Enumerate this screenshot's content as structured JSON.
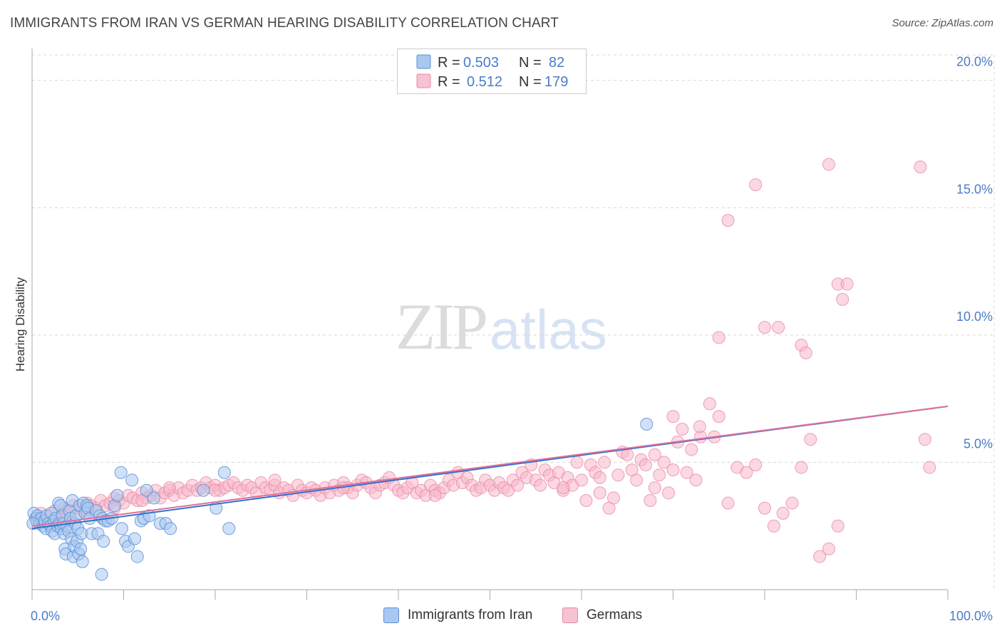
{
  "title": "IMMIGRANTS FROM IRAN VS GERMAN HEARING DISABILITY CORRELATION CHART",
  "source": "Source: ZipAtlas.com",
  "watermark": {
    "zip": "ZIP",
    "atlas": "atlas"
  },
  "colors": {
    "blue_fill": "#a9c8f0",
    "blue_stroke": "#5b8fd6",
    "blue_line": "#3470cc",
    "pink_fill": "#f7b8cb",
    "pink_stroke": "#e889a6",
    "pink_line": "#e0709a",
    "tick": "#4a7cc9",
    "grid": "#d8d8d8"
  },
  "legend_top": {
    "rows": [
      {
        "r_label": "R =",
        "r_value": "0.503",
        "n_label": "N =",
        "n_value": "82",
        "color": "blue"
      },
      {
        "r_label": "R =",
        "r_value": "0.512",
        "n_label": "N =",
        "n_value": "179",
        "color": "pink"
      }
    ]
  },
  "legend_bottom": [
    {
      "label": "Immigrants from Iran",
      "color": "blue"
    },
    {
      "label": "Germans",
      "color": "pink"
    }
  ],
  "chart_data": {
    "type": "scatter",
    "title": "IMMIGRANTS FROM IRAN VS GERMAN HEARING DISABILITY CORRELATION CHART",
    "xlabel": "",
    "ylabel": "Hearing Disability",
    "xlim": [
      0,
      100
    ],
    "ylim": [
      0,
      21
    ],
    "x_tick_labels": [
      "0.0%",
      "100.0%"
    ],
    "y_ticks": [
      5,
      10,
      15,
      20
    ],
    "y_tick_labels": [
      "5.0%",
      "10.0%",
      "15.0%",
      "20.0%"
    ],
    "grid": true,
    "legend_position": "top-center",
    "series": [
      {
        "name": "Immigrants from Iran",
        "color": "blue",
        "trend": {
          "x": [
            0,
            100
          ],
          "y": [
            2.4,
            7.2
          ]
        },
        "points": [
          [
            0.2,
            3.0
          ],
          [
            0.4,
            2.8
          ],
          [
            0.5,
            2.7
          ],
          [
            0.6,
            2.9
          ],
          [
            0.8,
            2.6
          ],
          [
            1.0,
            2.8
          ],
          [
            1.2,
            2.5
          ],
          [
            1.4,
            2.7
          ],
          [
            1.5,
            2.4
          ],
          [
            1.6,
            2.9
          ],
          [
            1.8,
            2.6
          ],
          [
            2.0,
            2.5
          ],
          [
            2.1,
            3.0
          ],
          [
            2.2,
            2.3
          ],
          [
            2.4,
            2.7
          ],
          [
            2.5,
            2.2
          ],
          [
            2.6,
            2.8
          ],
          [
            2.8,
            2.5
          ],
          [
            2.9,
            3.4
          ],
          [
            3.0,
            2.6
          ],
          [
            3.1,
            3.3
          ],
          [
            3.2,
            2.4
          ],
          [
            3.3,
            2.9
          ],
          [
            3.4,
            2.6
          ],
          [
            3.5,
            2.2
          ],
          [
            3.6,
            1.6
          ],
          [
            3.7,
            1.4
          ],
          [
            3.8,
            2.5
          ],
          [
            4.0,
            2.3
          ],
          [
            4.1,
            3.1
          ],
          [
            4.2,
            2.8
          ],
          [
            4.3,
            2.0
          ],
          [
            4.4,
            3.5
          ],
          [
            4.5,
            1.3
          ],
          [
            4.6,
            1.7
          ],
          [
            4.7,
            2.6
          ],
          [
            4.8,
            2.9
          ],
          [
            4.9,
            1.9
          ],
          [
            5.0,
            2.4
          ],
          [
            5.1,
            1.4
          ],
          [
            5.2,
            3.3
          ],
          [
            5.3,
            1.6
          ],
          [
            5.4,
            2.2
          ],
          [
            5.5,
            1.1
          ],
          [
            5.6,
            3.4
          ],
          [
            5.8,
            3.0
          ],
          [
            6.0,
            3.3
          ],
          [
            6.1,
            3.2
          ],
          [
            6.3,
            2.8
          ],
          [
            6.5,
            2.2
          ],
          [
            7.0,
            3.1
          ],
          [
            7.2,
            2.2
          ],
          [
            7.4,
            2.9
          ],
          [
            7.6,
            0.6
          ],
          [
            7.7,
            2.8
          ],
          [
            7.8,
            1.9
          ],
          [
            8.0,
            2.7
          ],
          [
            8.3,
            2.7
          ],
          [
            8.7,
            2.8
          ],
          [
            9.0,
            3.3
          ],
          [
            9.3,
            3.7
          ],
          [
            9.7,
            4.6
          ],
          [
            9.8,
            2.4
          ],
          [
            10.2,
            1.9
          ],
          [
            10.5,
            1.7
          ],
          [
            10.9,
            4.3
          ],
          [
            11.2,
            2.0
          ],
          [
            11.5,
            1.3
          ],
          [
            11.9,
            2.7
          ],
          [
            12.2,
            2.8
          ],
          [
            12.5,
            3.9
          ],
          [
            12.8,
            2.9
          ],
          [
            13.3,
            3.6
          ],
          [
            14.0,
            2.6
          ],
          [
            14.6,
            2.6
          ],
          [
            15.1,
            2.4
          ],
          [
            18.7,
            3.9
          ],
          [
            20.1,
            3.2
          ],
          [
            21.0,
            4.6
          ],
          [
            21.5,
            2.4
          ],
          [
            67.1,
            6.5
          ],
          [
            0.1,
            2.6
          ]
        ]
      },
      {
        "name": "Germans",
        "color": "pink",
        "trend": {
          "x": [
            0,
            100
          ],
          "y": [
            2.5,
            7.2
          ]
        },
        "points": [
          [
            0.5,
            2.8
          ],
          [
            1.0,
            3.0
          ],
          [
            1.5,
            2.7
          ],
          [
            2.0,
            2.9
          ],
          [
            2.5,
            3.1
          ],
          [
            3.0,
            2.8
          ],
          [
            3.5,
            3.2
          ],
          [
            4.0,
            3.0
          ],
          [
            4.5,
            3.3
          ],
          [
            5.0,
            3.2
          ],
          [
            5.5,
            3.1
          ],
          [
            6.0,
            3.4
          ],
          [
            6.5,
            3.3
          ],
          [
            7.0,
            3.2
          ],
          [
            7.5,
            3.5
          ],
          [
            8.0,
            3.3
          ],
          [
            8.5,
            3.4
          ],
          [
            9.0,
            3.6
          ],
          [
            9.5,
            3.5
          ],
          [
            10.0,
            3.4
          ],
          [
            10.5,
            3.7
          ],
          [
            11.0,
            3.6
          ],
          [
            11.5,
            3.5
          ],
          [
            12.0,
            3.8
          ],
          [
            12.5,
            3.6
          ],
          [
            13.0,
            3.7
          ],
          [
            13.5,
            3.9
          ],
          [
            14.0,
            3.6
          ],
          [
            14.5,
            3.8
          ],
          [
            15.0,
            3.9
          ],
          [
            15.5,
            3.7
          ],
          [
            16.0,
            4.0
          ],
          [
            16.5,
            3.8
          ],
          [
            17.0,
            3.9
          ],
          [
            17.5,
            4.1
          ],
          [
            18.0,
            3.9
          ],
          [
            18.5,
            4.0
          ],
          [
            19.0,
            4.2
          ],
          [
            19.5,
            4.0
          ],
          [
            20.0,
            4.1
          ],
          [
            20.5,
            3.9
          ],
          [
            21.0,
            4.0
          ],
          [
            21.5,
            4.1
          ],
          [
            22.0,
            4.2
          ],
          [
            22.5,
            4.0
          ],
          [
            23.0,
            3.9
          ],
          [
            23.5,
            4.1
          ],
          [
            24.0,
            4.0
          ],
          [
            24.5,
            3.8
          ],
          [
            25.0,
            4.2
          ],
          [
            25.5,
            4.0
          ],
          [
            26.0,
            3.9
          ],
          [
            26.5,
            4.1
          ],
          [
            27.0,
            3.8
          ],
          [
            27.5,
            4.0
          ],
          [
            28.0,
            3.9
          ],
          [
            28.5,
            3.7
          ],
          [
            29.0,
            4.1
          ],
          [
            29.5,
            3.9
          ],
          [
            30.0,
            3.8
          ],
          [
            30.5,
            4.0
          ],
          [
            31.0,
            3.9
          ],
          [
            31.5,
            3.7
          ],
          [
            32.0,
            4.0
          ],
          [
            32.5,
            3.8
          ],
          [
            33.0,
            4.1
          ],
          [
            33.5,
            3.9
          ],
          [
            34.0,
            4.2
          ],
          [
            34.5,
            4.0
          ],
          [
            35.0,
            3.8
          ],
          [
            35.5,
            4.1
          ],
          [
            36.0,
            4.3
          ],
          [
            36.5,
            4.2
          ],
          [
            37.0,
            4.0
          ],
          [
            37.5,
            3.8
          ],
          [
            38.0,
            4.1
          ],
          [
            38.5,
            4.2
          ],
          [
            39.0,
            4.4
          ],
          [
            39.5,
            4.1
          ],
          [
            40.0,
            3.9
          ],
          [
            40.5,
            3.8
          ],
          [
            41.0,
            4.0
          ],
          [
            41.5,
            4.2
          ],
          [
            42.0,
            3.8
          ],
          [
            42.5,
            3.9
          ],
          [
            43.0,
            3.7
          ],
          [
            43.5,
            4.1
          ],
          [
            44.0,
            3.9
          ],
          [
            44.5,
            3.8
          ],
          [
            45.0,
            4.0
          ],
          [
            45.5,
            4.3
          ],
          [
            46.0,
            4.1
          ],
          [
            46.5,
            4.6
          ],
          [
            47.0,
            4.2
          ],
          [
            47.5,
            4.4
          ],
          [
            48.0,
            4.1
          ],
          [
            48.5,
            3.9
          ],
          [
            49.0,
            4.0
          ],
          [
            49.5,
            4.3
          ],
          [
            50.0,
            4.1
          ],
          [
            50.5,
            3.9
          ],
          [
            51.0,
            4.2
          ],
          [
            51.5,
            4.0
          ],
          [
            52.0,
            3.9
          ],
          [
            52.5,
            4.3
          ],
          [
            53.0,
            4.1
          ],
          [
            53.5,
            4.6
          ],
          [
            54.0,
            4.4
          ],
          [
            54.5,
            4.9
          ],
          [
            55.0,
            4.3
          ],
          [
            55.5,
            4.1
          ],
          [
            56.0,
            4.7
          ],
          [
            56.5,
            4.5
          ],
          [
            57.0,
            4.2
          ],
          [
            57.5,
            4.6
          ],
          [
            58.0,
            3.9
          ],
          [
            58.5,
            4.4
          ],
          [
            59.0,
            4.1
          ],
          [
            59.5,
            5.0
          ],
          [
            60.0,
            4.3
          ],
          [
            60.5,
            3.5
          ],
          [
            61.0,
            4.9
          ],
          [
            61.5,
            4.6
          ],
          [
            62.0,
            4.4
          ],
          [
            62.5,
            5.0
          ],
          [
            63.0,
            3.2
          ],
          [
            63.5,
            3.6
          ],
          [
            64.0,
            4.5
          ],
          [
            64.5,
            5.4
          ],
          [
            65.0,
            5.3
          ],
          [
            65.5,
            4.7
          ],
          [
            66.0,
            4.3
          ],
          [
            66.5,
            5.1
          ],
          [
            67.0,
            4.9
          ],
          [
            67.5,
            3.5
          ],
          [
            68.0,
            4.0
          ],
          [
            68.5,
            4.5
          ],
          [
            69.0,
            5.0
          ],
          [
            69.5,
            3.8
          ],
          [
            70.0,
            4.7
          ],
          [
            70.5,
            5.8
          ],
          [
            71.0,
            6.3
          ],
          [
            71.5,
            4.6
          ],
          [
            72.0,
            5.5
          ],
          [
            72.5,
            4.3
          ],
          [
            73.0,
            6.0
          ],
          [
            74.0,
            7.3
          ],
          [
            74.5,
            6.0
          ],
          [
            75.0,
            6.8
          ],
          [
            76.0,
            3.4
          ],
          [
            77.0,
            4.8
          ],
          [
            78.0,
            4.6
          ],
          [
            79.0,
            4.9
          ],
          [
            80.0,
            3.2
          ],
          [
            81.0,
            2.5
          ],
          [
            82.0,
            3.0
          ],
          [
            83.0,
            3.4
          ],
          [
            84.0,
            4.8
          ],
          [
            85.0,
            5.9
          ],
          [
            86.0,
            1.3
          ],
          [
            87.0,
            1.6
          ],
          [
            88.0,
            2.5
          ],
          [
            72.9,
            6.4
          ],
          [
            70.0,
            6.8
          ],
          [
            75.0,
            9.9
          ],
          [
            76.0,
            14.5
          ],
          [
            79.0,
            15.9
          ],
          [
            80.0,
            10.3
          ],
          [
            81.5,
            10.3
          ],
          [
            84.0,
            9.6
          ],
          [
            84.5,
            9.3
          ],
          [
            87.0,
            16.7
          ],
          [
            88.0,
            12.0
          ],
          [
            88.5,
            11.4
          ],
          [
            89.0,
            12.0
          ],
          [
            97.0,
            16.6
          ],
          [
            97.5,
            5.9
          ],
          [
            98.0,
            4.8
          ],
          [
            34.0,
            4.0
          ],
          [
            26.5,
            4.3
          ],
          [
            15.0,
            4.0
          ],
          [
            12.0,
            3.5
          ],
          [
            9.0,
            3.2
          ],
          [
            6.0,
            3.0
          ],
          [
            20.0,
            3.9
          ],
          [
            44.0,
            3.7
          ],
          [
            58.0,
            4.0
          ],
          [
            62.0,
            3.8
          ],
          [
            68.0,
            5.3
          ]
        ]
      }
    ]
  }
}
